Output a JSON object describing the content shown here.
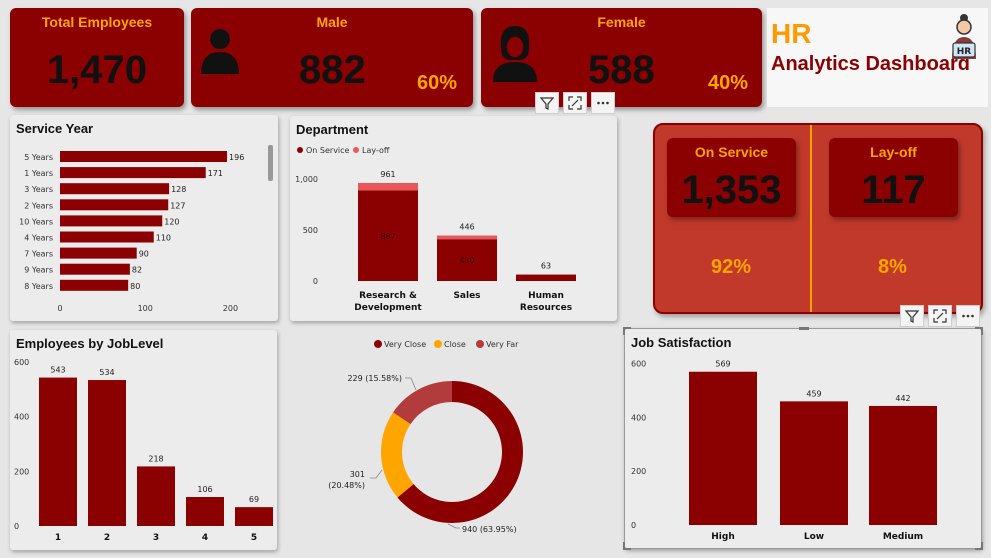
{
  "kpis": {
    "total": {
      "title": "Total Employees",
      "value": "1,470"
    },
    "male": {
      "title": "Male",
      "value": "882",
      "pct": "60%",
      "icon": "male-user-icon"
    },
    "female": {
      "title": "Female",
      "value": "588",
      "pct": "40%",
      "icon": "female-user-icon"
    }
  },
  "header": {
    "hr": "HR",
    "subtitle": "Analytics Dashboard",
    "logo_text": "HR",
    "logo_icon": "hr-person-icon"
  },
  "service_status": {
    "on_service": {
      "title": "On Service",
      "value": "1,353",
      "pct": "92%"
    },
    "layoff": {
      "title": "Lay-off",
      "value": "117",
      "pct": "8%"
    }
  },
  "colors": {
    "accent": "#8b0000",
    "orange": "#ffa500",
    "light_red": "#e8575a",
    "donut_far": "#b23b3b"
  },
  "chart_data": [
    {
      "id": "service_year",
      "type": "bar",
      "orientation": "horizontal",
      "title": "Service Year",
      "categories": [
        "5 Years",
        "1 Years",
        "3 Years",
        "2 Years",
        "10 Years",
        "4 Years",
        "7 Years",
        "9 Years",
        "8 Years"
      ],
      "values": [
        196,
        171,
        128,
        127,
        120,
        110,
        90,
        82,
        80
      ],
      "value_labels": [
        "196",
        "171",
        "128",
        "127",
        "120",
        "110",
        "90",
        "82",
        "80"
      ],
      "xlim": [
        0,
        230
      ],
      "xticks": [
        "0",
        "100",
        "200"
      ]
    },
    {
      "id": "department",
      "type": "bar",
      "stacked": true,
      "title": "Department",
      "categories": [
        "Research & Development",
        "Sales",
        "Human Resources"
      ],
      "category_lines": [
        [
          "Research &",
          "Development"
        ],
        [
          "Sales"
        ],
        [
          "Human",
          "Resources"
        ]
      ],
      "series": [
        {
          "name": "On Service",
          "values": [
            887,
            410,
            63
          ]
        },
        {
          "name": "Lay-off",
          "values": [
            74,
            36,
            0
          ]
        }
      ],
      "totals": [
        "961",
        "446",
        "63"
      ],
      "inner_labels": [
        "887",
        "410",
        ""
      ],
      "ylim": [
        0,
        1000
      ],
      "yticks": [
        "0",
        "500",
        "1,000"
      ],
      "legend": [
        "On Service",
        "Lay-off"
      ]
    },
    {
      "id": "job_level",
      "type": "bar",
      "title": "Employees by JobLevel",
      "categories": [
        "1",
        "2",
        "3",
        "4",
        "5"
      ],
      "values": [
        543,
        534,
        218,
        106,
        69
      ],
      "value_labels": [
        "543",
        "534",
        "218",
        "106",
        "69"
      ],
      "ylim": [
        0,
        600
      ],
      "yticks": [
        "0",
        "200",
        "400",
        "600"
      ]
    },
    {
      "id": "distance",
      "type": "pie",
      "donut": true,
      "categories": [
        "Very Close",
        "Close",
        "Very Far"
      ],
      "values": [
        940,
        301,
        229
      ],
      "percents": [
        63.95,
        20.48,
        15.58
      ],
      "slice_labels": [
        [
          "940 (63.95%)"
        ],
        [
          "301",
          "(20.48%)"
        ],
        [
          "229 (15.58%)"
        ]
      ],
      "legend": [
        "Very Close",
        "Close",
        "Very Far"
      ]
    },
    {
      "id": "job_satisfaction",
      "type": "bar",
      "title": "Job Satisfaction",
      "categories": [
        "High",
        "Low",
        "Medium"
      ],
      "values": [
        569,
        459,
        442
      ],
      "value_labels": [
        "569",
        "459",
        "442"
      ],
      "ylim": [
        0,
        620
      ],
      "yticks": [
        "0",
        "200",
        "400",
        "600"
      ]
    }
  ]
}
